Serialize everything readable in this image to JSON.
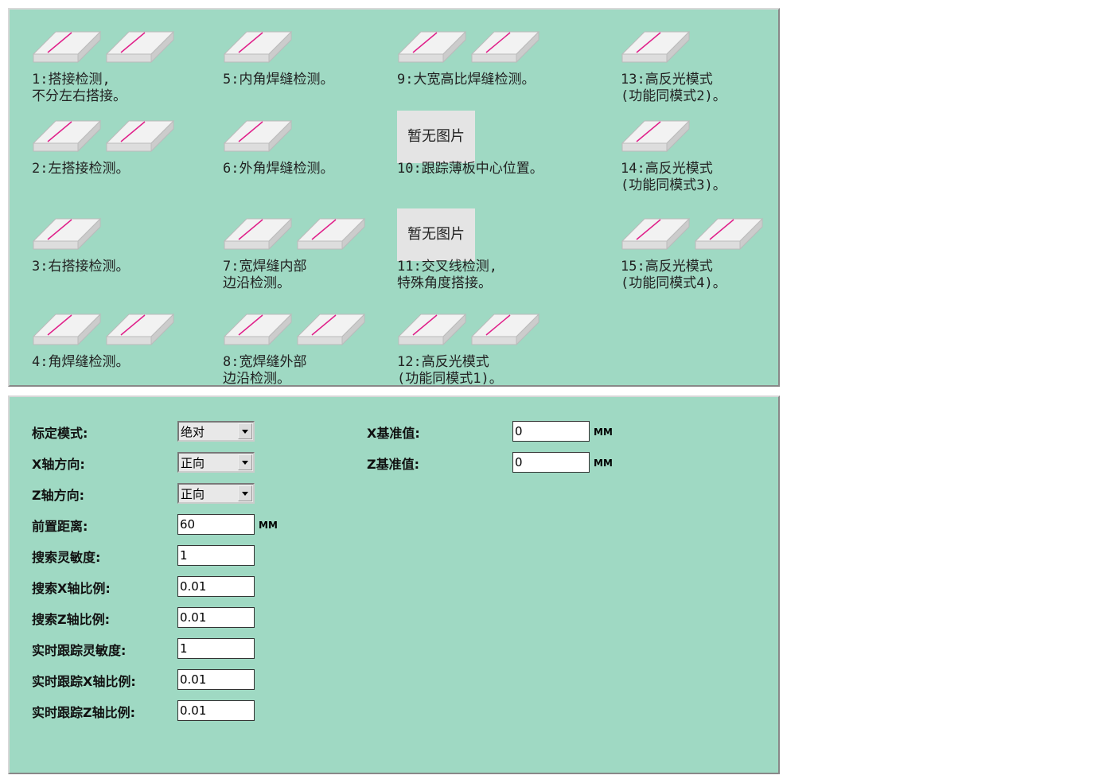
{
  "modes": [
    {
      "lines": [
        "1:搭接检测,",
        "不分左右搭接。"
      ]
    },
    {
      "lines": [
        "2:左搭接检测。"
      ]
    },
    {
      "lines": [
        "3:右搭接检测。"
      ]
    },
    {
      "lines": [
        "4:角焊缝检测。"
      ]
    },
    {
      "lines": [
        "5:内角焊缝检测。"
      ]
    },
    {
      "lines": [
        "6:外角焊缝检测。"
      ]
    },
    {
      "lines": [
        "7:宽焊缝内部",
        "边沿检测。"
      ]
    },
    {
      "lines": [
        "8:宽焊缝外部",
        "边沿检测。"
      ]
    },
    {
      "lines": [
        "9:大宽高比焊缝检测。"
      ]
    },
    {
      "lines": [
        "10:跟踪薄板中心位置。"
      ],
      "placeholder": "暂无图片"
    },
    {
      "lines": [
        "11:交叉线检测,",
        "特殊角度搭接。"
      ],
      "placeholder": "暂无图片"
    },
    {
      "lines": [
        "12:高反光模式",
        "(功能同模式1)。"
      ]
    },
    {
      "lines": [
        "13:高反光模式",
        "(功能同模式2)。"
      ]
    },
    {
      "lines": [
        "14:高反光模式",
        "(功能同模式3)。"
      ]
    },
    {
      "lines": [
        "15:高反光模式",
        "(功能同模式4)。"
      ]
    }
  ],
  "settings": {
    "left": [
      {
        "label": "标定模式:",
        "value": "绝对",
        "control": "select"
      },
      {
        "label": "X轴方向:",
        "value": "正向",
        "control": "select"
      },
      {
        "label": "Z轴方向:",
        "value": "正向",
        "control": "select"
      },
      {
        "label": "前置距离:",
        "value": "60",
        "unit": "MM"
      },
      {
        "label": "搜索灵敏度:",
        "value": "1"
      },
      {
        "label": "搜索X轴比例:",
        "value": "0.01"
      },
      {
        "label": "搜索Z轴比例:",
        "value": "0.01"
      },
      {
        "label": "实时跟踪灵敏度:",
        "value": "1"
      },
      {
        "label": "实时跟踪X轴比例:",
        "value": "0.01"
      },
      {
        "label": "实时跟踪Z轴比例:",
        "value": "0.01"
      }
    ],
    "right": [
      {
        "label": "X基准值:",
        "value": "0",
        "unit": "MM"
      },
      {
        "label": "Z基准值:",
        "value": "0",
        "unit": "MM"
      }
    ]
  }
}
